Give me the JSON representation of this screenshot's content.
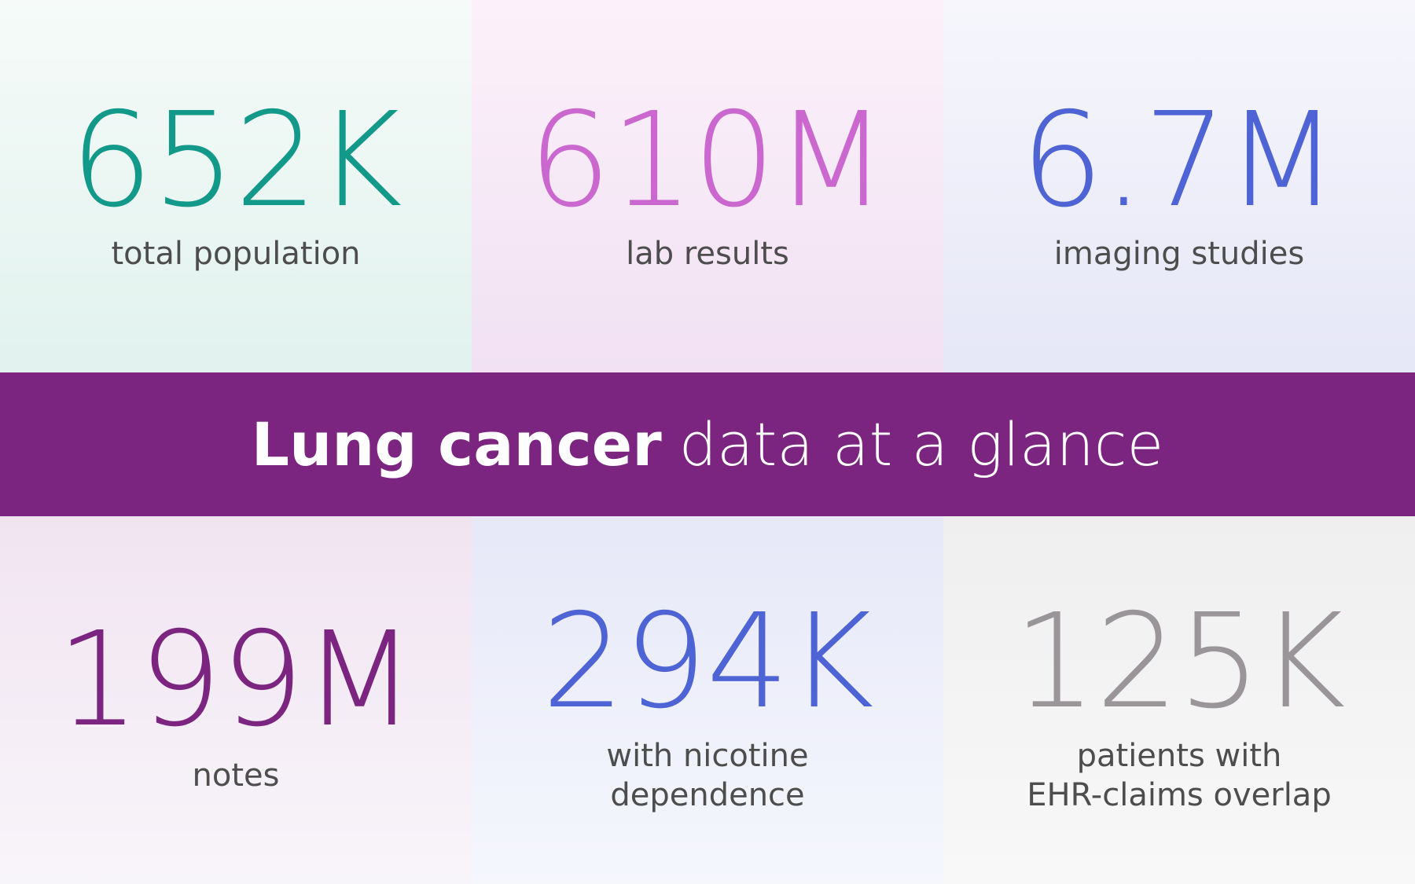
{
  "banner": {
    "bold_text": "Lung cancer",
    "light_text": "data at a glance",
    "background_color": "#7b2580"
  },
  "stats_top": [
    {
      "value": "652K",
      "label": "total population",
      "color": "#13998a"
    },
    {
      "value": "610M",
      "label": "lab results",
      "color": "#cb68cf"
    },
    {
      "value": "6.7M",
      "label": "imaging studies",
      "color": "#4e63d4"
    }
  ],
  "stats_bottom": [
    {
      "value": "199M",
      "label": "notes",
      "color": "#7b2580"
    },
    {
      "value": "294K",
      "label_line1": "with nicotine",
      "label_line2": "dependence",
      "color": "#4e63d4"
    },
    {
      "value": "125K",
      "label_line1": "patients with",
      "label_line2": "EHR-claims overlap",
      "color": "#9a9598"
    }
  ]
}
